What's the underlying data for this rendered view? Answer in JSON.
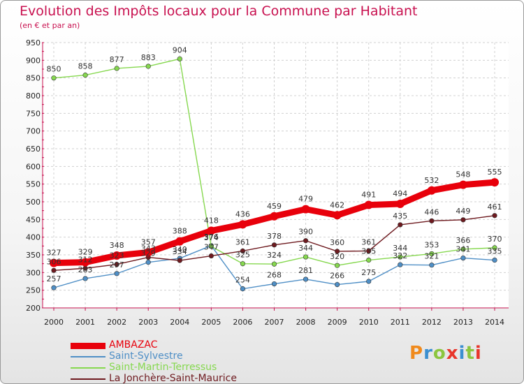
{
  "header": {
    "title": "Evolution des Impôts locaux pour la Commune par Habitant",
    "subtitle": "(en € et par an)"
  },
  "logo": {
    "letters": [
      "P",
      "r",
      "o",
      "x",
      "i",
      "t",
      "i"
    ],
    "colors": [
      "#f08a1c",
      "#3b8fd0",
      "#8cc63f",
      "#e8362b",
      "#3b8fd0",
      "#8cc63f",
      "#e8362b"
    ]
  },
  "chart_data": {
    "type": "line",
    "x": [
      "2000",
      "2001",
      "2002",
      "2003",
      "2004",
      "2005",
      "2006",
      "2007",
      "2008",
      "2009",
      "2010",
      "2011",
      "2012",
      "2013",
      "2014"
    ],
    "ylim": [
      200,
      950
    ],
    "yticks": [
      200,
      250,
      300,
      350,
      400,
      450,
      500,
      550,
      600,
      650,
      700,
      750,
      800,
      850,
      900,
      950
    ],
    "grid": true,
    "legend_position": "bottom-left",
    "series": [
      {
        "name": "AMBAZAC",
        "color": "#e8000b",
        "values": [
          327,
          329,
          348,
          357,
          388,
          418,
          436,
          459,
          479,
          462,
          491,
          494,
          532,
          548,
          555
        ]
      },
      {
        "name": "Saint-Sylvestre",
        "color": "#4f8fc6",
        "values": [
          257,
          283,
          297,
          329,
          340,
          376,
          254,
          268,
          281,
          266,
          275,
          322,
          321,
          341,
          335
        ]
      },
      {
        "name": "Saint-Martin-Terressus",
        "color": "#86d84f",
        "values": [
          850,
          858,
          877,
          883,
          904,
          374,
          325,
          324,
          344,
          320,
          335,
          344,
          353,
          366,
          370
        ]
      },
      {
        "name": "La Jonchère-Saint-Maurice",
        "color": "#6e1a1f",
        "values": [
          306,
          312,
          323,
          343,
          334,
          347,
          361,
          378,
          390,
          360,
          361,
          435,
          446,
          449,
          461
        ]
      }
    ]
  }
}
